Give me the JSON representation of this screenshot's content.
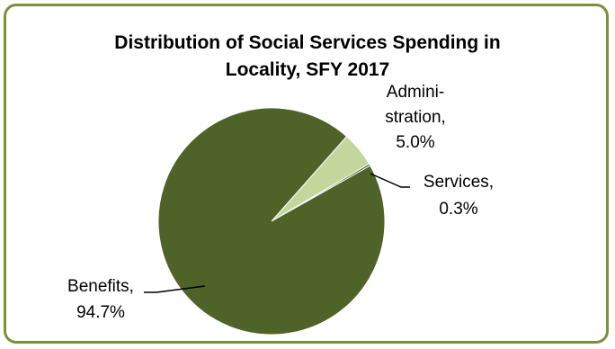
{
  "chart_data": {
    "type": "pie",
    "title_lines": [
      "Distribution of Social Services Spending in",
      "Locality, SFY 2017"
    ],
    "slices": [
      {
        "name": "Administration",
        "label_lines": [
          "Admini-",
          "stration,",
          "5.0%"
        ],
        "value": 5.0,
        "color": "#c3d69b"
      },
      {
        "name": "Services",
        "label_lines": [
          "Services,",
          "0.3%"
        ],
        "value": 0.3,
        "color": "#4f6228"
      },
      {
        "name": "Benefits",
        "label_lines": [
          "Benefits,",
          "94.7%"
        ],
        "value": 94.7,
        "color": "#4f6228"
      }
    ],
    "legend": "none",
    "colors": {
      "frame_border": "#77933c",
      "slice_outline": "#ffffff",
      "leader_line": "#000000"
    }
  }
}
